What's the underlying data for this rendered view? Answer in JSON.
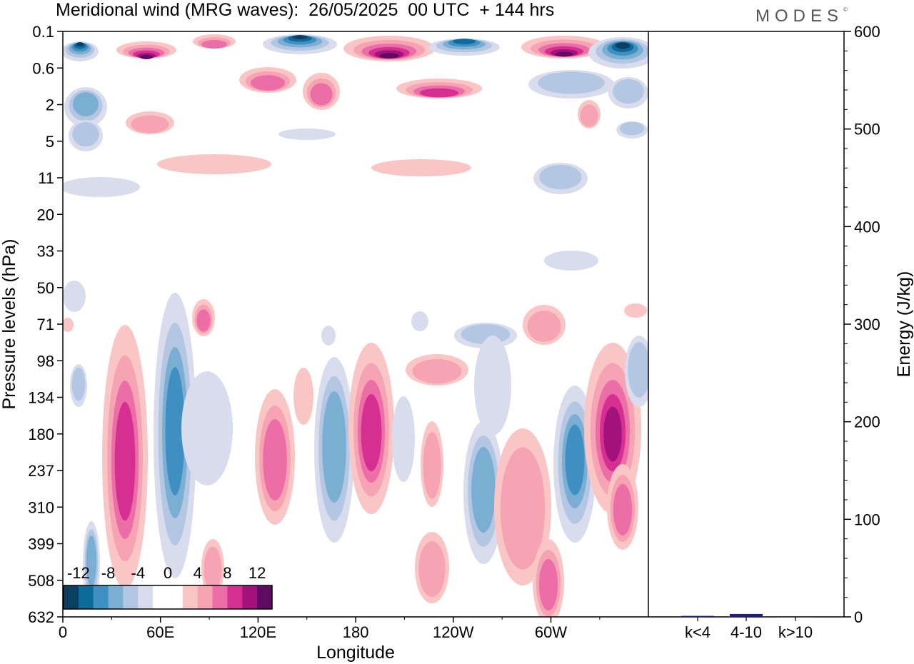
{
  "title": "Meridional wind (MRG waves):  26/05/2025  00 UTC  + 144 hrs",
  "brand": "MODES",
  "brand_mark": "©",
  "chart_data": [
    {
      "type": "heatmap",
      "title": "Meridional wind (MRG waves):  26/05/2025  00 UTC  + 144 hrs",
      "xlabel": "Longitude",
      "ylabel": "Pressure levels (hPa)",
      "x_ticks": [
        "0",
        "60E",
        "120E",
        "180",
        "120W",
        "60W"
      ],
      "y_ticks": [
        "0.1",
        "0.6",
        "2",
        "5",
        "11",
        "20",
        "33",
        "50",
        "71",
        "98",
        "134",
        "180",
        "237",
        "310",
        "399",
        "508",
        "632"
      ],
      "colorbar": {
        "ticks": [
          "-12",
          "-8",
          "-4",
          "0",
          "4",
          "8",
          "12"
        ],
        "colors": [
          "#0c3f60",
          "#0f6a9c",
          "#3f8fc2",
          "#7aaed3",
          "#b4c7e2",
          "#d8dcec",
          "#ffffff",
          "#ffffff",
          "#f9c5c5",
          "#f6a3b4",
          "#ec6ea6",
          "#d62f92",
          "#a3127a",
          "#5f0b63"
        ]
      }
    },
    {
      "type": "bar",
      "categories": [
        "k<4",
        "4-10",
        "k>10"
      ],
      "values": [
        1,
        3,
        0
      ],
      "ylabel": "Energy (J/kg)",
      "ylim": [
        0,
        600
      ],
      "y_ticks": [
        "0",
        "100",
        "200",
        "300",
        "400",
        "500",
        "600"
      ],
      "bar_color": "#1f1f7a"
    }
  ]
}
